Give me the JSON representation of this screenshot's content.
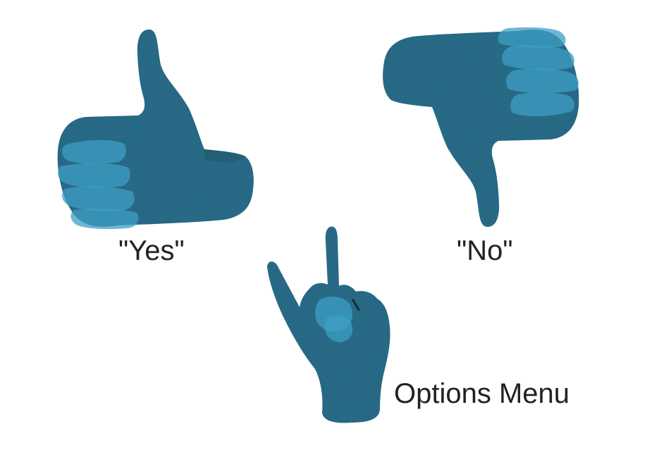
{
  "gestures": [
    {
      "name": "thumbs-up",
      "label": "\"Yes\""
    },
    {
      "name": "thumbs-down",
      "label": "\"No\""
    },
    {
      "name": "horns-hand",
      "label": "Options Menu"
    }
  ],
  "colors": {
    "hand": "#1d5f7f",
    "hand_dark": "#174e69",
    "finger_highlight": "#3d9fc4",
    "text": "#222222",
    "background": "#ffffff"
  }
}
